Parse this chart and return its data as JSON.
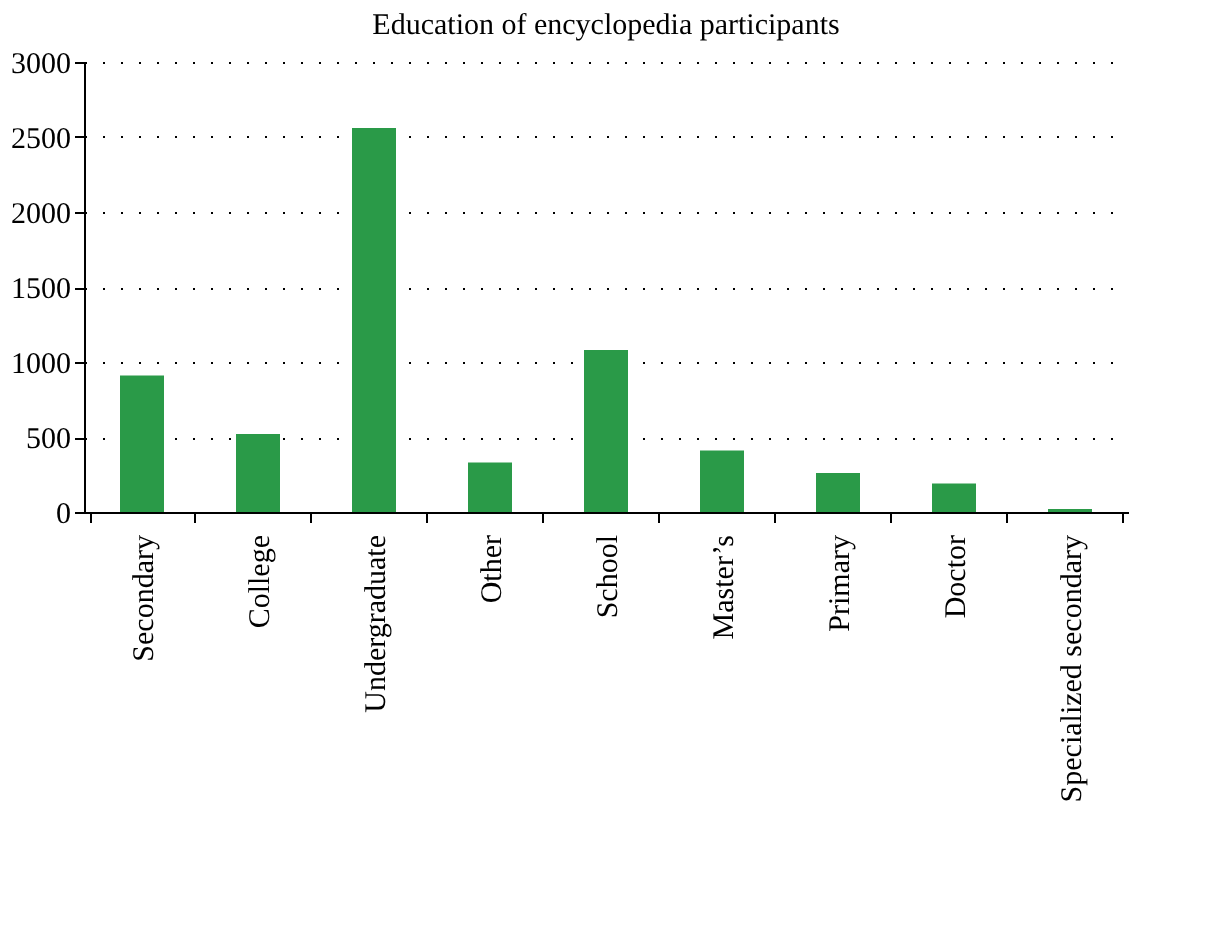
{
  "chart_data": {
    "type": "bar",
    "title": "Education of encyclopedia participants",
    "categories": [
      "Secondary",
      "College",
      "Undergraduate",
      "Other",
      "School",
      "Master’s",
      "Primary",
      "Doctor",
      "Specialized secondary"
    ],
    "values": [
      910,
      520,
      2560,
      330,
      1080,
      410,
      260,
      190,
      20
    ],
    "color": "#2a9a48",
    "ylim": [
      0,
      3000
    ],
    "yticks": [
      0,
      500,
      1000,
      1500,
      2000,
      2500,
      3000
    ],
    "grid": "y"
  }
}
